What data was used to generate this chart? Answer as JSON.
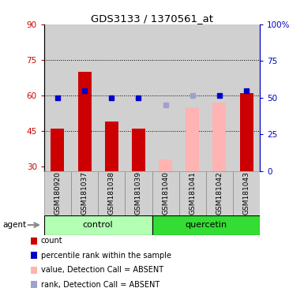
{
  "title": "GDS3133 / 1370561_at",
  "samples": [
    "GSM180920",
    "GSM181037",
    "GSM181038",
    "GSM181039",
    "GSM181040",
    "GSM181041",
    "GSM181042",
    "GSM181043"
  ],
  "groups": [
    "control",
    "control",
    "control",
    "control",
    "quercetin",
    "quercetin",
    "quercetin",
    "quercetin"
  ],
  "bar_values": [
    46,
    70,
    49,
    46,
    null,
    null,
    null,
    61
  ],
  "bar_values_absent": [
    null,
    null,
    null,
    null,
    33,
    55,
    57,
    null
  ],
  "dot_values_left": [
    59,
    62,
    59,
    59,
    null,
    null,
    60,
    62
  ],
  "dot_values_absent_left": [
    null,
    null,
    null,
    null,
    56,
    60,
    null,
    null
  ],
  "ymin": 28,
  "ymax": 90,
  "y_ticks_left": [
    30,
    45,
    60,
    75,
    90
  ],
  "y_ticks_right_pct": [
    0,
    25,
    50,
    75,
    100
  ],
  "ytick_labels_left": [
    "30",
    "45",
    "60",
    "75",
    "90"
  ],
  "ytick_labels_right": [
    "0",
    "25",
    "50",
    "75",
    "100%"
  ],
  "hlines": [
    45,
    60,
    75
  ],
  "bar_color_present": "#cc0000",
  "bar_color_absent": "#ffb3b3",
  "dot_color_present": "#0000cc",
  "dot_color_absent": "#a0a0cc",
  "col_bg_color": "#d0d0d0",
  "left_axis_color": "#cc0000",
  "right_axis_color": "#0000cc",
  "group_colors": {
    "control": "#b3ffb3",
    "quercetin": "#33dd33"
  },
  "legend_items": [
    {
      "label": "count",
      "color": "#cc0000"
    },
    {
      "label": "percentile rank within the sample",
      "color": "#0000cc"
    },
    {
      "label": "value, Detection Call = ABSENT",
      "color": "#ffb3b3"
    },
    {
      "label": "rank, Detection Call = ABSENT",
      "color": "#a0a0cc"
    }
  ]
}
